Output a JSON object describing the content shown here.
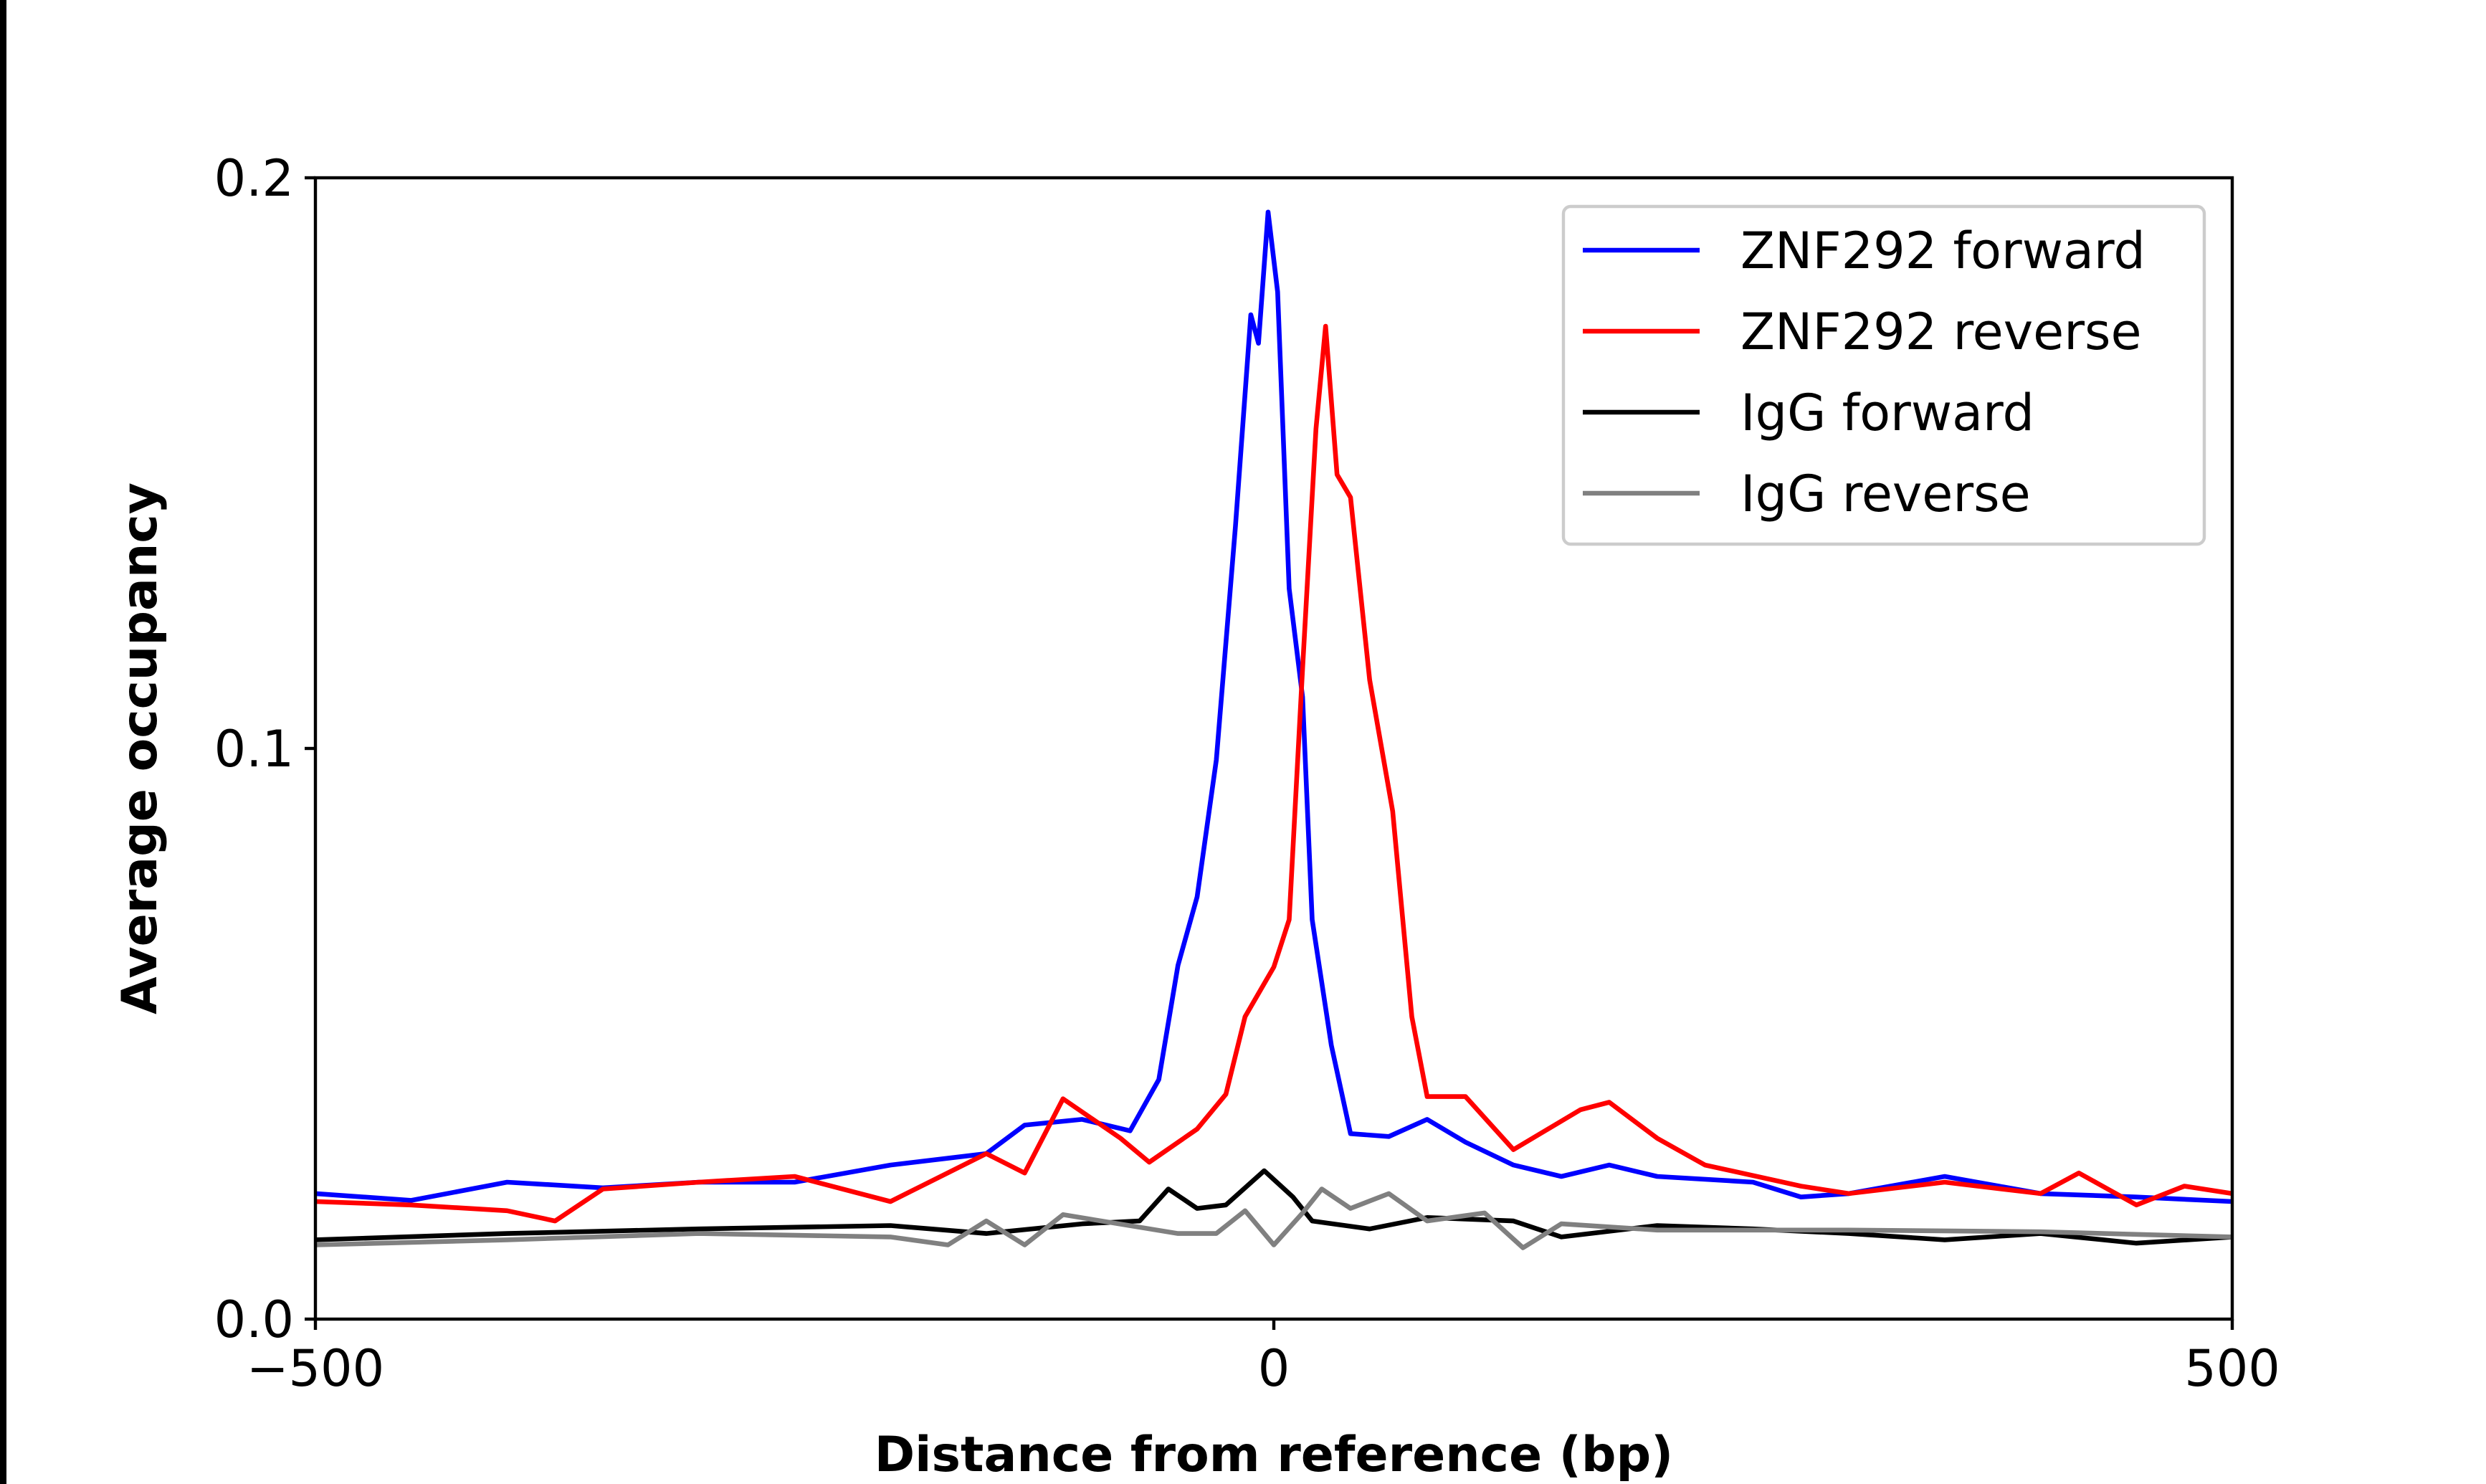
{
  "chart_data": {
    "type": "line",
    "title": "",
    "xlabel": "Distance from reference (bp)",
    "ylabel": "Average occupancy",
    "xlim": [
      -500,
      500
    ],
    "ylim": [
      0,
      0.2
    ],
    "xticks": [
      "−500",
      "0",
      "500"
    ],
    "xtick_values": [
      -500,
      0,
      500
    ],
    "yticks": [
      "0.0",
      "0.1",
      "0.2"
    ],
    "ytick_values": [
      0,
      0.1,
      0.2
    ],
    "grid": false,
    "legend_position": "top-right",
    "series": [
      {
        "name": "ZNF292 forward",
        "color": "#0000ff",
        "x": [
          -500,
          -450,
          -400,
          -350,
          -300,
          -250,
          -200,
          -150,
          -130,
          -100,
          -75,
          -60,
          -50,
          -40,
          -30,
          -20,
          -12,
          -8,
          -3,
          2,
          8,
          15,
          20,
          30,
          40,
          60,
          80,
          100,
          125,
          150,
          175,
          200,
          250,
          275,
          300,
          350,
          400,
          450,
          500
        ],
        "y": [
          0.022,
          0.0208,
          0.024,
          0.023,
          0.024,
          0.024,
          0.027,
          0.029,
          0.034,
          0.035,
          0.033,
          0.042,
          0.062,
          0.074,
          0.098,
          0.139,
          0.176,
          0.171,
          0.194,
          0.18,
          0.128,
          0.109,
          0.07,
          0.048,
          0.0325,
          0.032,
          0.035,
          0.031,
          0.027,
          0.025,
          0.027,
          0.025,
          0.024,
          0.0214,
          0.022,
          0.025,
          0.022,
          0.0214,
          0.0206
        ]
      },
      {
        "name": "ZNF292 reverse",
        "color": "#ff0000",
        "x": [
          -500,
          -450,
          -400,
          -375,
          -350,
          -300,
          -250,
          -200,
          -150,
          -130,
          -110,
          -80,
          -65,
          -40,
          -25,
          -15,
          0,
          8,
          15,
          22,
          27,
          33,
          40,
          50,
          62,
          72,
          80,
          100,
          125,
          160,
          175,
          200,
          225,
          275,
          300,
          350,
          400,
          420,
          450,
          475,
          500
        ],
        "y": [
          0.0206,
          0.02,
          0.019,
          0.0172,
          0.0228,
          0.024,
          0.025,
          0.0206,
          0.029,
          0.0256,
          0.0386,
          0.0317,
          0.0275,
          0.0333,
          0.0394,
          0.053,
          0.0617,
          0.07,
          0.114,
          0.156,
          0.174,
          0.148,
          0.144,
          0.112,
          0.089,
          0.053,
          0.039,
          0.039,
          0.0297,
          0.0367,
          0.038,
          0.0317,
          0.027,
          0.0233,
          0.022,
          0.024,
          0.022,
          0.0256,
          0.02,
          0.0233,
          0.022
        ]
      },
      {
        "name": "IgG forward",
        "color": "#000000",
        "x": [
          -500,
          -400,
          -300,
          -200,
          -150,
          -100,
          -70,
          -55,
          -40,
          -25,
          -5,
          10,
          20,
          50,
          80,
          125,
          150,
          200,
          250,
          300,
          350,
          400,
          450,
          500
        ],
        "y": [
          0.0139,
          0.015,
          0.0158,
          0.0164,
          0.015,
          0.0167,
          0.0172,
          0.0228,
          0.0194,
          0.02,
          0.026,
          0.0214,
          0.0172,
          0.0158,
          0.0178,
          0.0172,
          0.0144,
          0.0164,
          0.0158,
          0.015,
          0.0139,
          0.015,
          0.0133,
          0.0144
        ]
      },
      {
        "name": "IgG reverse",
        "color": "#808080",
        "x": [
          -500,
          -400,
          -300,
          -200,
          -170,
          -150,
          -130,
          -110,
          -50,
          -30,
          -15,
          0,
          15,
          25,
          40,
          60,
          80,
          110,
          130,
          150,
          200,
          300,
          400,
          500
        ],
        "y": [
          0.013,
          0.0139,
          0.015,
          0.0144,
          0.013,
          0.0172,
          0.013,
          0.0183,
          0.015,
          0.015,
          0.019,
          0.013,
          0.0186,
          0.0228,
          0.0194,
          0.022,
          0.0172,
          0.0186,
          0.0125,
          0.0167,
          0.0156,
          0.0156,
          0.0153,
          0.0144
        ]
      }
    ]
  }
}
